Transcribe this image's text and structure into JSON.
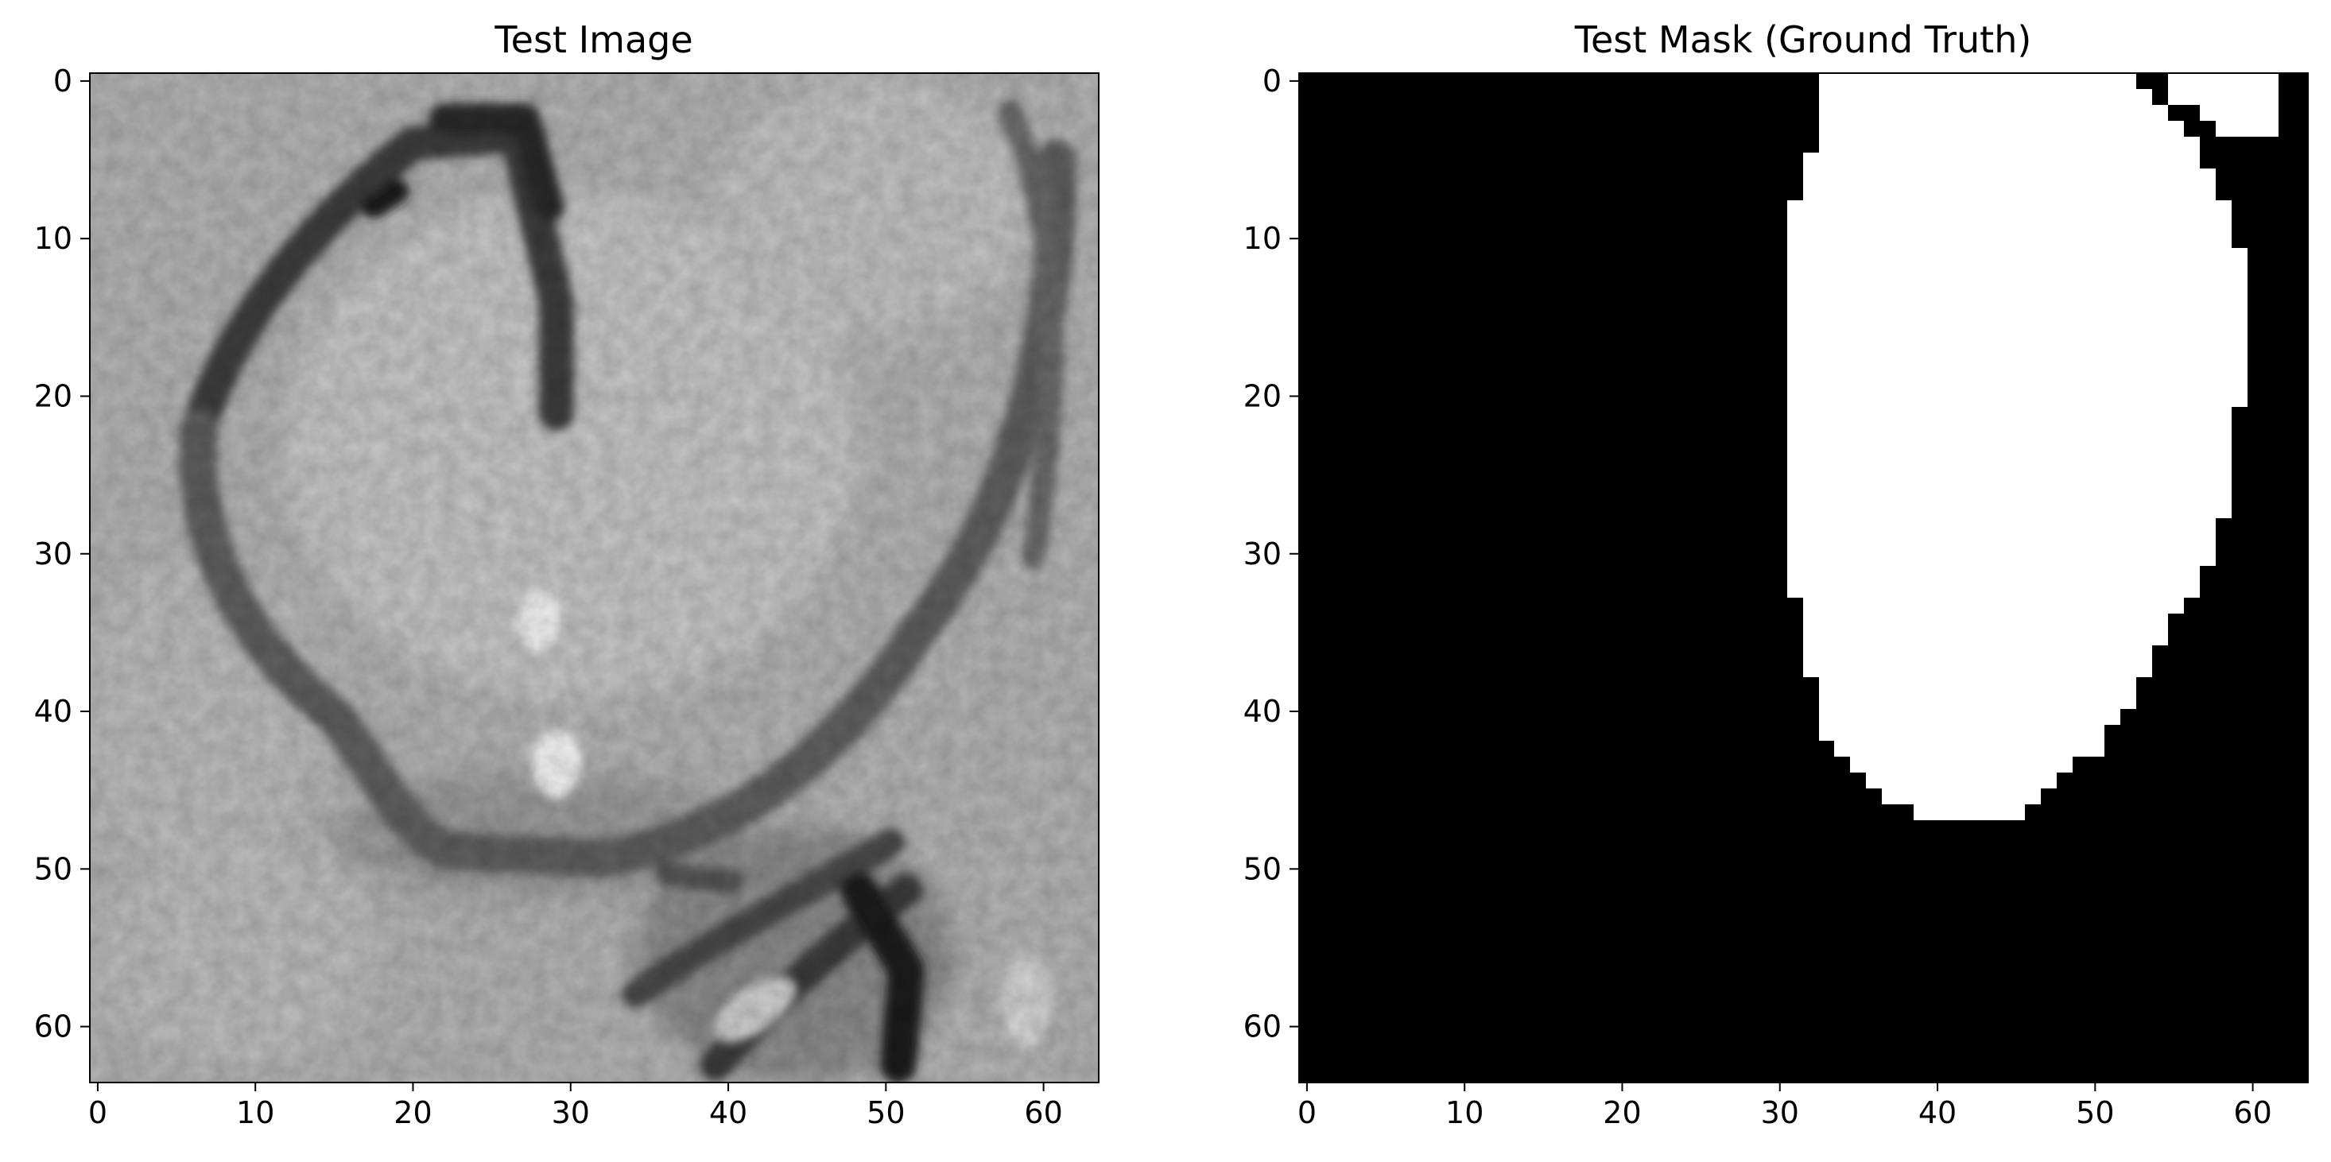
{
  "figure": {
    "panels": [
      {
        "title": "Test Image",
        "kind": "grayscale-image",
        "colormap": "gray",
        "grid": false,
        "x_ticks": [
          "0",
          "10",
          "20",
          "30",
          "40",
          "50",
          "60"
        ],
        "y_ticks": [
          "0",
          "10",
          "20",
          "30",
          "40",
          "50",
          "60"
        ],
        "extent": [
          0,
          64
        ],
        "description": "64x64 grayscale patch: light gray tissue with a dark outlined rounded region"
      },
      {
        "title": "Test Mask (Ground Truth)",
        "kind": "binary-mask",
        "colormap": "gray",
        "grid": false,
        "x_ticks": [
          "0",
          "10",
          "20",
          "30",
          "40",
          "50",
          "60"
        ],
        "y_ticks": [
          "0",
          "10",
          "20",
          "30",
          "40",
          "50",
          "60"
        ],
        "extent": [
          0,
          64
        ],
        "colors": {
          "background": "#000000",
          "foreground": "#ffffff"
        }
      }
    ]
  }
}
